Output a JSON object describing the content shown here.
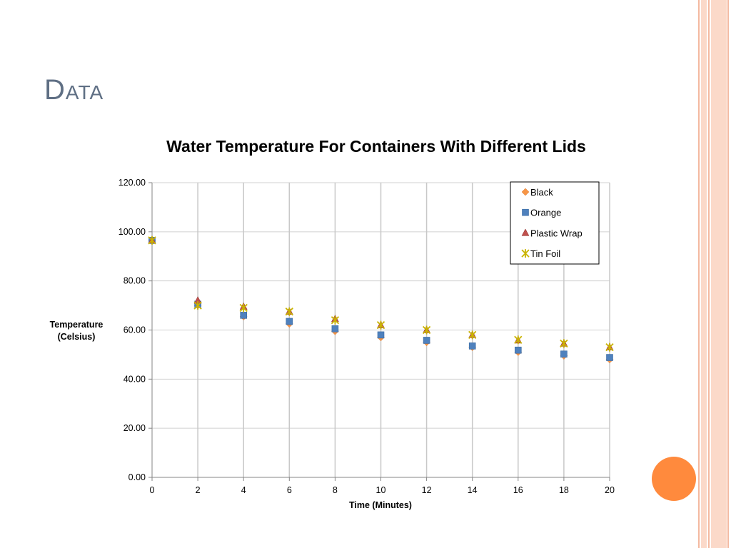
{
  "slide": {
    "title": "Data"
  },
  "colors": {
    "accent_circle": "#ff8a3d",
    "frame": "#f4b9a0",
    "frame_fill": "#fbd9c9",
    "title": "#5f6f84"
  },
  "chart_data": {
    "type": "scatter",
    "title": "Water Temperature For Containers With Different Lids",
    "xlabel": "Time (Minutes)",
    "ylabel_lines": [
      "Temperature",
      "(Celsius)"
    ],
    "xlim": [
      0,
      20
    ],
    "ylim": [
      0,
      120
    ],
    "x_ticks": [
      0,
      2,
      4,
      6,
      8,
      10,
      12,
      14,
      16,
      18,
      20
    ],
    "y_ticks": [
      "0.00",
      "20.00",
      "40.00",
      "60.00",
      "80.00",
      "100.00",
      "120.00"
    ],
    "y_tick_values": [
      0,
      20,
      40,
      60,
      80,
      100,
      120
    ],
    "grid": "vertical and horizontal",
    "legend_position": "top-right",
    "x": [
      0,
      2,
      4,
      6,
      8,
      10,
      12,
      14,
      16,
      18,
      20
    ],
    "series": [
      {
        "name": "Black",
        "marker": "diamond",
        "color": "#f79646",
        "values": [
          96.5,
          70.0,
          65.5,
          62.5,
          59.5,
          57.0,
          55.0,
          53.0,
          51.0,
          49.5,
          48.0
        ]
      },
      {
        "name": "Orange",
        "marker": "square",
        "color": "#4f81bd",
        "values": [
          96.5,
          70.5,
          66.0,
          63.5,
          60.5,
          58.0,
          55.8,
          53.5,
          51.8,
          50.2,
          48.8
        ]
      },
      {
        "name": "Plastic Wrap",
        "marker": "triangle",
        "color": "#c0504d",
        "values": [
          96.5,
          72.0,
          69.5,
          67.5,
          64.5,
          62.0,
          60.0,
          58.0,
          55.8,
          54.5,
          53.0
        ]
      },
      {
        "name": "Tin Foil",
        "marker": "star",
        "color": "#c9b400",
        "values": [
          96.5,
          70.0,
          69.0,
          67.5,
          64.0,
          62.0,
          60.0,
          58.0,
          56.0,
          54.5,
          53.0
        ]
      }
    ]
  }
}
